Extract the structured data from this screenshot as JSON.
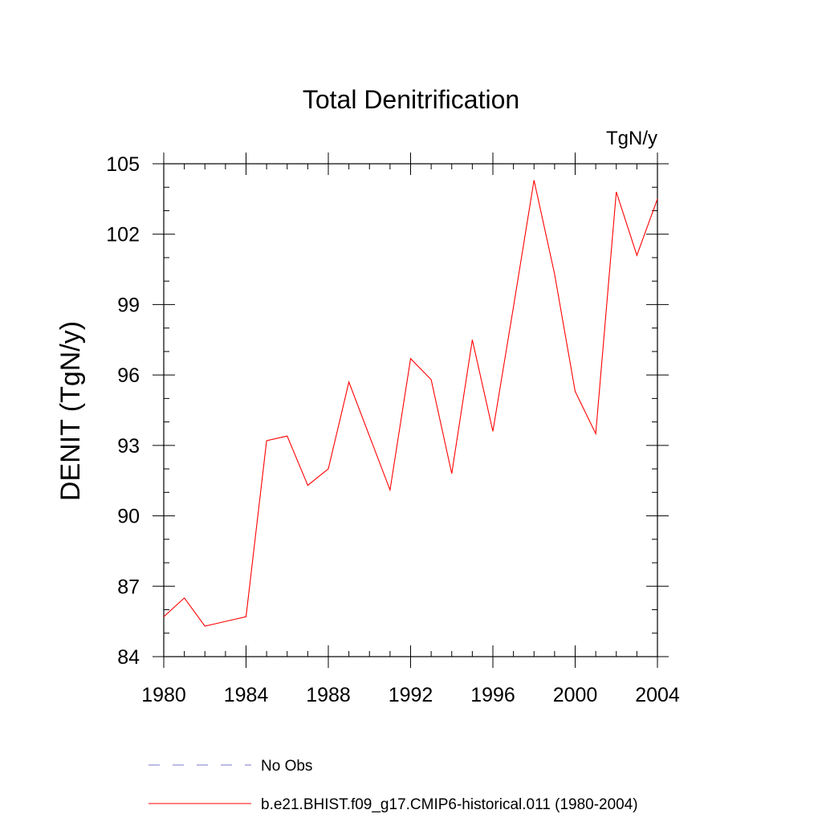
{
  "chart_data": {
    "type": "line",
    "title": "Total Denitrification",
    "units_label": "TgN/y",
    "ylabel": "DENIT  (TgN/y)",
    "xlabel": "",
    "xlim": [
      1980,
      2004
    ],
    "ylim": [
      84,
      105
    ],
    "x_ticks": [
      1980,
      1984,
      1988,
      1992,
      1996,
      2000,
      2004
    ],
    "y_ticks": [
      84,
      87,
      90,
      93,
      96,
      99,
      102,
      105
    ],
    "x": [
      1980,
      1981,
      1982,
      1983,
      1984,
      1985,
      1986,
      1987,
      1988,
      1989,
      1990,
      1991,
      1992,
      1993,
      1994,
      1995,
      1996,
      1997,
      1998,
      1999,
      2000,
      2001,
      2002,
      2003,
      2004
    ],
    "series": [
      {
        "name": "b.e21.BHIST.f09_g17.CMIP6-historical.011 (1980-2004)",
        "color": "#ff0000",
        "values": [
          85.7,
          86.5,
          85.3,
          85.5,
          85.7,
          93.2,
          93.4,
          91.3,
          92.0,
          95.7,
          93.4,
          91.1,
          96.7,
          95.8,
          91.8,
          97.5,
          93.6,
          98.9,
          104.3,
          100.3,
          95.3,
          93.5,
          103.8,
          101.1,
          103.5
        ]
      }
    ],
    "legend": {
      "placement": "bottom",
      "entries": [
        {
          "label": "No Obs",
          "color": "#7777cc",
          "style": "dashed"
        },
        {
          "label": "b.e21.BHIST.f09_g17.CMIP6-historical.011 (1980-2004)",
          "color": "#ff0000",
          "style": "solid"
        }
      ]
    },
    "grid": false
  }
}
